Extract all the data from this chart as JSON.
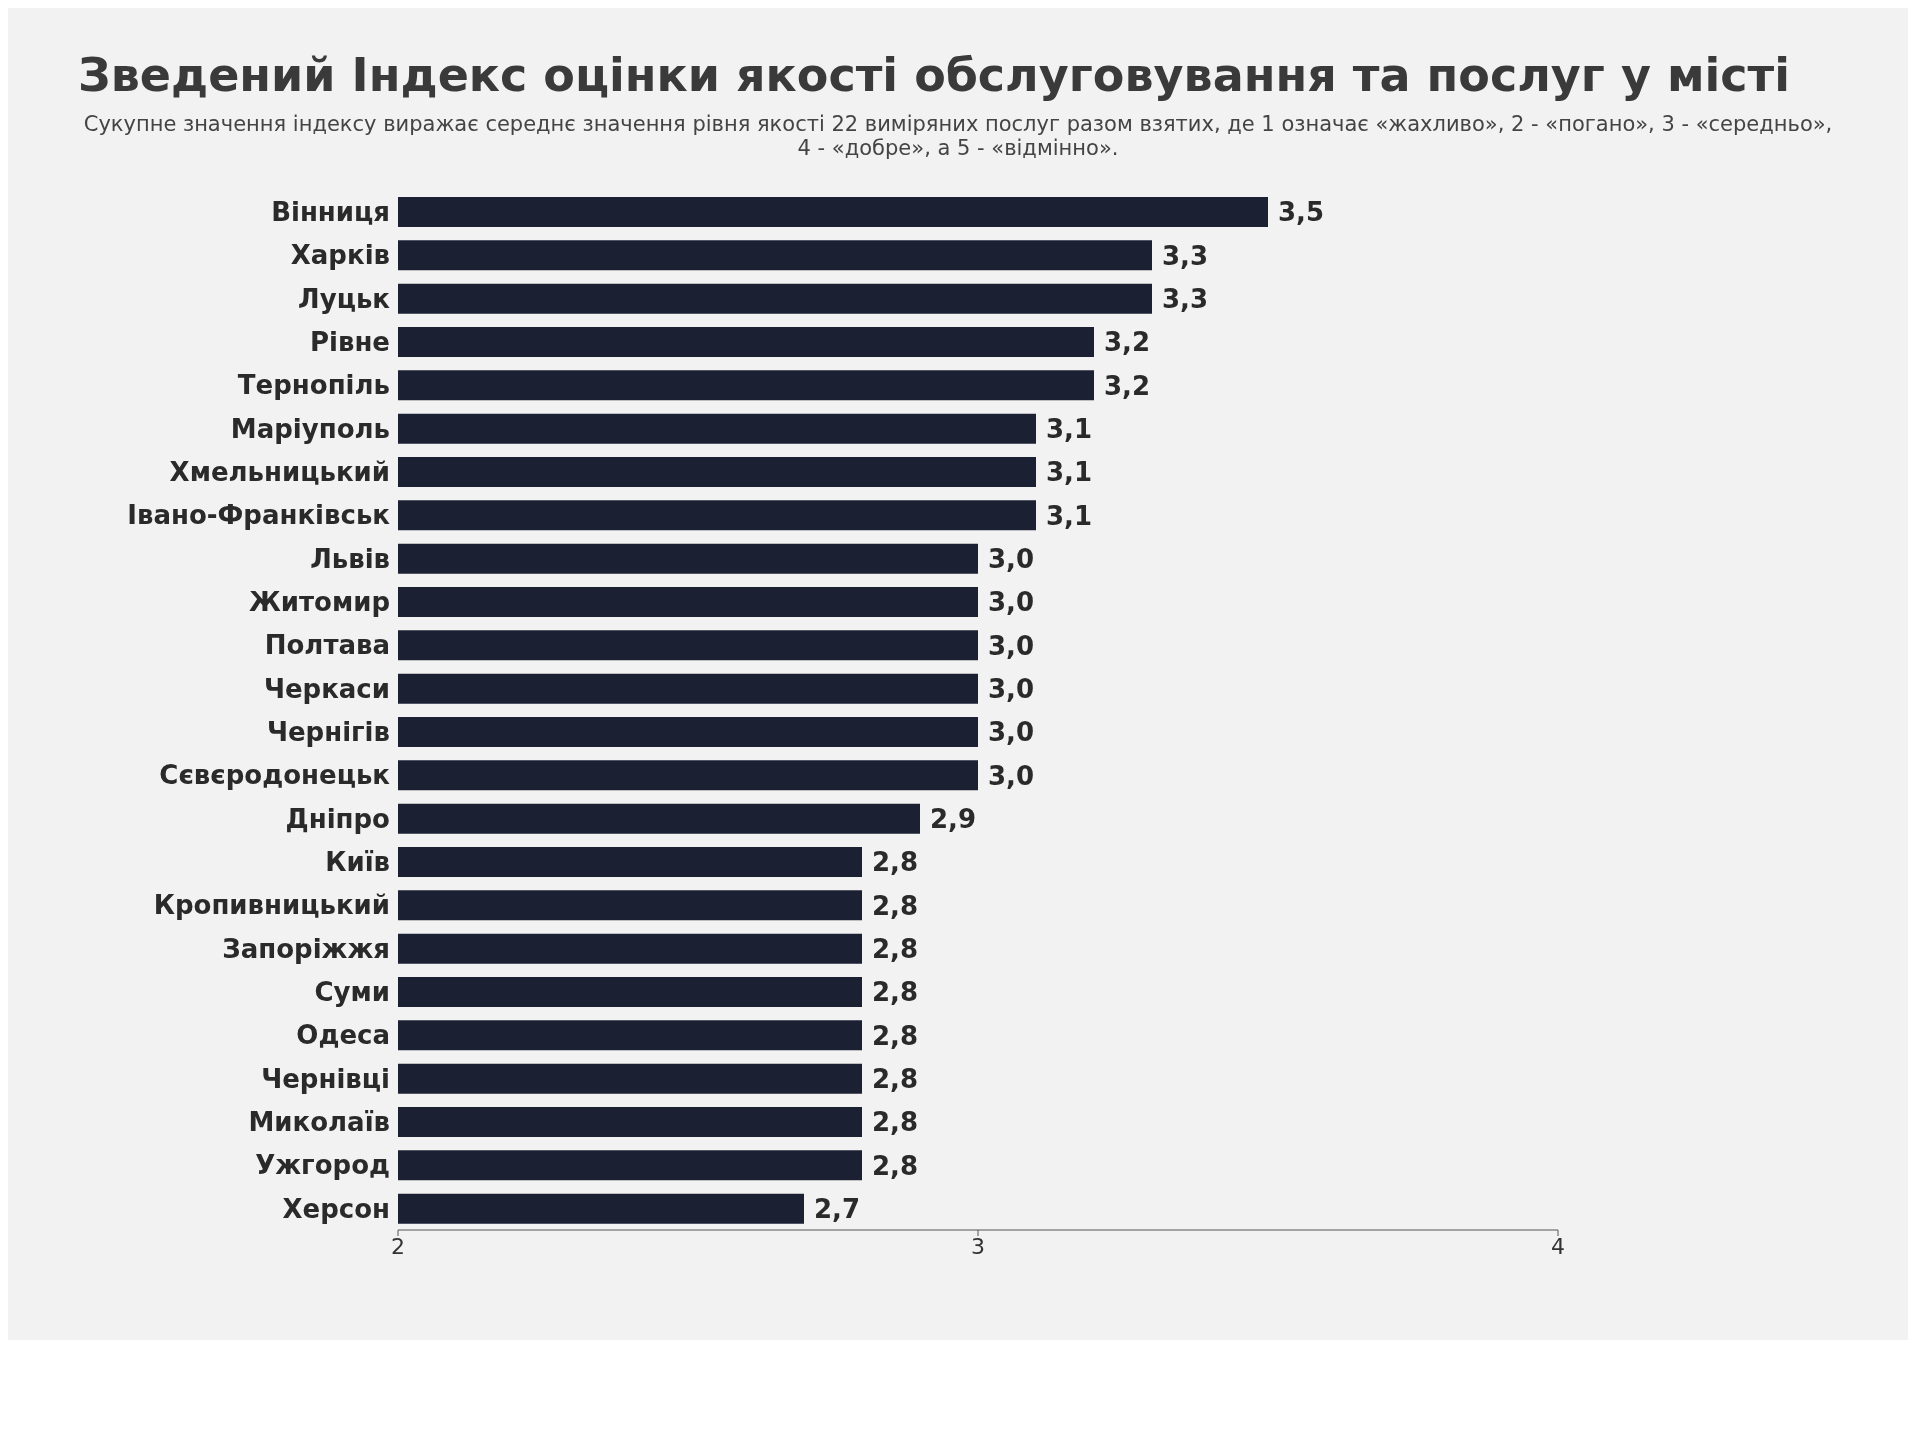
{
  "chart_data": {
    "type": "bar",
    "orientation": "horizontal",
    "title": "Зведений Індекс оцінки якості обслуговування та послуг у місті",
    "subtitle": "Сукупне значення індексу виражає середнє значення рівня якості 22 виміряних послуг разом взятих, де 1 означає «жахливо», 2 - «погано», 3 - «середньо», 4 - «добре», а 5 - «відмінно».",
    "categories": [
      "Вінниця",
      "Харків",
      "Луцьк",
      "Рівне",
      "Тернопіль",
      "Маріуполь",
      "Хмельницький",
      "Івано-Франківськ",
      "Львів",
      "Житомир",
      "Полтава",
      "Черкаси",
      "Чернігів",
      "Сєвєродонецьк",
      "Дніпро",
      "Київ",
      "Кропивницький",
      "Запоріжжя",
      "Суми",
      "Одеса",
      "Чернівці",
      "Миколаїв",
      "Ужгород",
      "Херсон"
    ],
    "values": [
      3.5,
      3.3,
      3.3,
      3.2,
      3.2,
      3.1,
      3.1,
      3.1,
      3.0,
      3.0,
      3.0,
      3.0,
      3.0,
      3.0,
      2.9,
      2.8,
      2.8,
      2.8,
      2.8,
      2.8,
      2.8,
      2.8,
      2.8,
      2.7
    ],
    "value_labels": [
      "3,5",
      "3,3",
      "3,3",
      "3,2",
      "3,2",
      "3,1",
      "3,1",
      "3,1",
      "3,0",
      "3,0",
      "3,0",
      "3,0",
      "3,0",
      "3,0",
      "2,9",
      "2,8",
      "2,8",
      "2,8",
      "2,8",
      "2,8",
      "2,8",
      "2,8",
      "2,8",
      "2,7"
    ],
    "color": "#1c2033",
    "xlim": [
      2,
      4
    ],
    "xticks": [
      2,
      3,
      4
    ],
    "grid": false
  }
}
